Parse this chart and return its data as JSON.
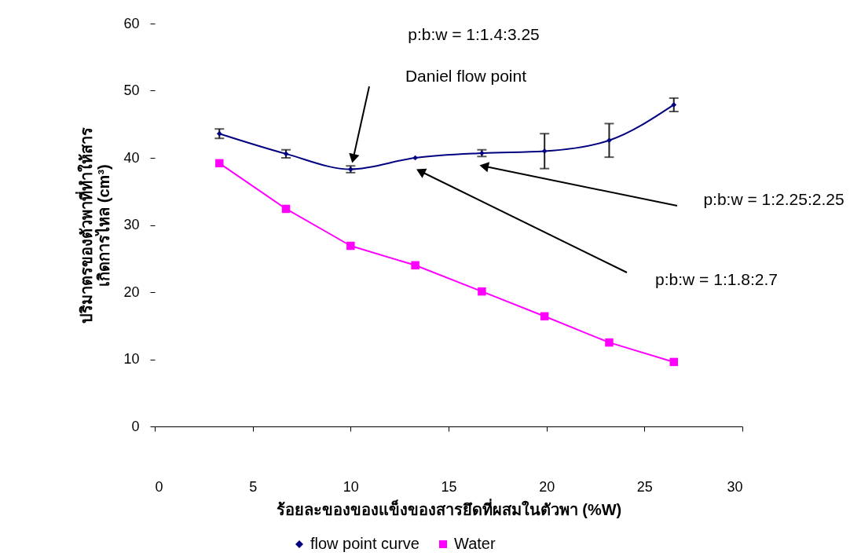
{
  "chart_data": {
    "type": "line",
    "xlabel": "ร้อยละของของแข็งของสารยึดที่ผสมในตัวพา (%W)",
    "ylabel": "ปริมาตรของตัวพาที่ทำให้สาร\nเกิดการไหล (cm³)",
    "x": [
      3.3,
      6.7,
      10,
      13.3,
      16.7,
      19.9,
      23.2,
      26.5
    ],
    "series": [
      {
        "name": "flow point curve",
        "color": "#000080",
        "marker": "diamond",
        "values": [
          43.6,
          40.6,
          38.3,
          40.0,
          40.7,
          41.0,
          42.6,
          47.9
        ],
        "errors": [
          0.7,
          0.6,
          0.5,
          null,
          0.5,
          2.6,
          2.5,
          1.0
        ]
      },
      {
        "name": "Water",
        "color": "#ff00ff",
        "marker": "square",
        "values": [
          39.2,
          32.4,
          26.9,
          24.0,
          20.1,
          16.4,
          12.5,
          9.6
        ]
      }
    ],
    "xlim": [
      0,
      30
    ],
    "xticks": [
      0,
      5,
      10,
      15,
      20,
      25,
      30
    ],
    "ylim": [
      0,
      60
    ],
    "yticks": [
      0,
      10,
      20,
      30,
      40,
      50,
      60
    ],
    "grid": false,
    "legend": "bottom",
    "annotations": [
      "p:b:w = 1:1.4:3.25",
      "Daniel flow point",
      "p:b:w = 1:2.25:2.25",
      "p:b:w = 1:1.8:2.7"
    ]
  }
}
